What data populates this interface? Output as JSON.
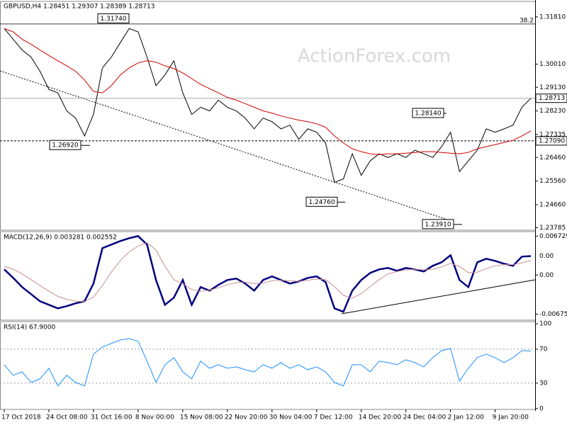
{
  "chart_data": [
    {
      "type": "line",
      "title": "GBPUSD,H4  1.28451 1.29307 1.28389 1.28713",
      "watermark": "ActionForex.com",
      "ylim": [
        1.2369,
        1.324
      ],
      "yticks": [
        {
          "value": 1.3181,
          "label": "1.31810"
        },
        {
          "value": 1.3001,
          "label": "1.30010"
        },
        {
          "value": 1.2913,
          "label": "1.29130"
        },
        {
          "value": 1.2823,
          "label": "1.28230"
        },
        1.27335,
        {
          "value": 1.2646,
          "label": "1.26460"
        },
        {
          "value": 1.2556,
          "label": "1.25560"
        },
        {
          "value": 1.2466,
          "label": "1.24660"
        },
        1.23785
      ],
      "price_labels": [
        1.28713,
        {
          "value": 1.2709,
          "label": "1.27090"
        }
      ],
      "levels": [
        {
          "value": 1.3154,
          "label": "38.2"
        }
      ],
      "annotations": [
        {
          "value": 1.3174,
          "label": "1.31740"
        },
        {
          "value": 1.2692,
          "label": "1.26920"
        },
        {
          "value": 1.2476,
          "label": "1.24760"
        },
        {
          "value": 1.2814,
          "label": "1.28140"
        },
        {
          "value": 1.2391,
          "label": "1.23910"
        }
      ],
      "series": [
        {
          "color": "#000000",
          "values": [
            1.3137,
            1.3096,
            1.3055,
            1.3028,
            1.2974,
            1.2905,
            1.2892,
            1.2823,
            1.2796,
            1.2728,
            1.281,
            1.2987,
            1.3028,
            1.3083,
            1.3137,
            1.3124,
            1.3028,
            1.2919,
            1.296,
            1.3014,
            1.2892,
            1.281,
            1.2837,
            1.2823,
            1.2864,
            1.2837,
            1.2823,
            1.2796,
            1.2755,
            1.2796,
            1.2782,
            1.2755,
            1.2769,
            1.2715,
            1.2755,
            1.2742,
            1.2701,
            1.2551,
            1.2564,
            1.266,
            1.2578,
            1.2633,
            1.266,
            1.2646,
            1.266,
            1.2646,
            1.2674,
            1.266,
            1.2646,
            1.2687,
            1.2742,
            1.2592,
            1.2633,
            1.2674,
            1.2755,
            1.2742,
            1.2755,
            1.2769,
            1.2837,
            1.28713
          ]
        },
        {
          "color": "#d00000",
          "values": [
            1.3137,
            1.3124,
            1.3096,
            1.3077,
            1.3055,
            1.3034,
            1.3014,
            1.2995,
            1.2974,
            1.2941,
            1.2897,
            1.2892,
            1.2919,
            1.296,
            1.2987,
            1.3006,
            1.3014,
            1.3009,
            1.2995,
            1.2984,
            1.2968,
            1.2946,
            1.2924,
            1.2908,
            1.2892,
            1.2875,
            1.2864,
            1.2851,
            1.2837,
            1.2823,
            1.2815,
            1.2804,
            1.2796,
            1.2788,
            1.2782,
            1.2774,
            1.2761,
            1.2728,
            1.2701,
            1.2679,
            1.2668,
            1.266,
            1.2657,
            1.266,
            1.266,
            1.2662,
            1.2665,
            1.2668,
            1.2668,
            1.2665,
            1.2662,
            1.266,
            1.2665,
            1.2679,
            1.2687,
            1.2695,
            1.2703,
            1.2711,
            1.2728,
            1.2747
          ]
        }
      ]
    },
    {
      "type": "line",
      "title": "MACD(12,26,9) 0.003281 0.002552",
      "ylim": [
        -0.0078,
        0.0075
      ],
      "yticks": [
        0.006729,
        {
          "value": 0,
          "label": "0.00"
        },
        -0.006758
      ],
      "value_tag": {
        "value": 0.003281,
        "label": "0.00"
      },
      "series": [
        {
          "color": "#000080",
          "values": [
            0.00098,
            -0.00049,
            -0.00208,
            -0.0033,
            -0.00453,
            -0.00514,
            -0.00575,
            -0.00538,
            -0.00489,
            -0.00453,
            -0.00147,
            0.00465,
            0.00526,
            0.00587,
            0.00636,
            0.00673,
            0.00526,
            -0.00086,
            -0.00514,
            -0.00391,
            -0.00086,
            -0.00514,
            -0.00208,
            -0.00269,
            -0.00171,
            -0.00086,
            -0.00061,
            -0.00147,
            -0.00269,
            -0.00086,
            -0.00024,
            -0.00086,
            -0.00147,
            -0.0011,
            -0.00049,
            -0.00024,
            -0.00122,
            -0.00575,
            -0.00636,
            -0.00269,
            -0.00086,
            0.00037,
            0.00098,
            0.00122,
            0.00073,
            0.00122,
            0.00098,
            0.00061,
            0.00159,
            0.0022,
            0.00342,
            -0.00086,
            -0.00208,
            0.0022,
            0.00281,
            0.00245,
            0.00196,
            0.00159,
            0.00318,
            0.003281
          ]
        },
        {
          "color": "#c89090",
          "values": [
            0.0015,
            0.001,
            0.0002,
            -0.0008,
            -0.0018,
            -0.0028,
            -0.0037,
            -0.0042,
            -0.0045,
            -0.0046,
            -0.0038,
            -0.0018,
            0.0005,
            0.0025,
            0.004,
            0.005,
            0.0056,
            0.0043,
            0.0015,
            -0.0008,
            -0.0015,
            -0.0025,
            -0.0028,
            -0.0026,
            -0.0022,
            -0.0017,
            -0.0013,
            -0.0012,
            -0.0015,
            -0.0014,
            -0.001,
            -0.0009,
            -0.001,
            -0.0011,
            -0.0009,
            -0.0007,
            -0.0008,
            -0.002,
            -0.0035,
            -0.004,
            -0.0032,
            -0.002,
            -0.0008,
            0.0002,
            0.0006,
            0.0009,
            0.001,
            0.0009,
            0.001,
            0.0014,
            0.002,
            0.0015,
            0.0004,
            0.0005,
            0.0011,
            0.0016,
            0.0018,
            0.0018,
            0.0021,
            0.002552
          ]
        }
      ]
    },
    {
      "type": "line",
      "title": "RSI(14) 67.9000",
      "ylim": [
        -1,
        102.5
      ],
      "yticks": [
        100,
        70,
        30,
        0
      ],
      "levels": [
        70,
        30
      ],
      "categories": [
        "17 Oct 2018",
        null,
        null,
        null,
        null,
        "24 Oct 08:00",
        null,
        null,
        null,
        null,
        "31 Oct 16:00",
        null,
        null,
        null,
        null,
        "8 Nov 00:00",
        null,
        null,
        null,
        null,
        "15 Nov 08:00",
        null,
        null,
        null,
        null,
        "22 Nov 20:00",
        null,
        null,
        null,
        null,
        "30 Nov 04:00",
        null,
        null,
        null,
        null,
        "7 Dec 12:00",
        null,
        null,
        null,
        null,
        "14 Dec 20:00",
        null,
        null,
        null,
        null,
        "24 Dec 04:00",
        null,
        null,
        null,
        null,
        "2 Jan 12:00",
        null,
        null,
        null,
        null,
        "9 Jan 20:00",
        null,
        null,
        null,
        null
      ],
      "series": [
        {
          "color": "#1e90ff",
          "values": [
            51.7,
            39.2,
            43.3,
            30.8,
            35,
            47.5,
            26.7,
            39.2,
            30.8,
            26.7,
            64.2,
            72.5,
            76.7,
            80.8,
            82.5,
            79.2,
            55.8,
            30.8,
            51.7,
            60,
            43.3,
            35,
            55.8,
            47.5,
            51.7,
            47.5,
            49.2,
            45.8,
            43.3,
            51.7,
            47.5,
            54.2,
            47.5,
            51.7,
            45.8,
            49.2,
            43.3,
            30.8,
            26.7,
            51.7,
            51.7,
            43.3,
            55.8,
            54.2,
            51.7,
            57.5,
            54.2,
            49.2,
            60,
            68.3,
            70.8,
            32.5,
            47.5,
            60,
            64.2,
            60,
            54.2,
            60,
            68.3,
            67.9
          ]
        }
      ]
    }
  ]
}
